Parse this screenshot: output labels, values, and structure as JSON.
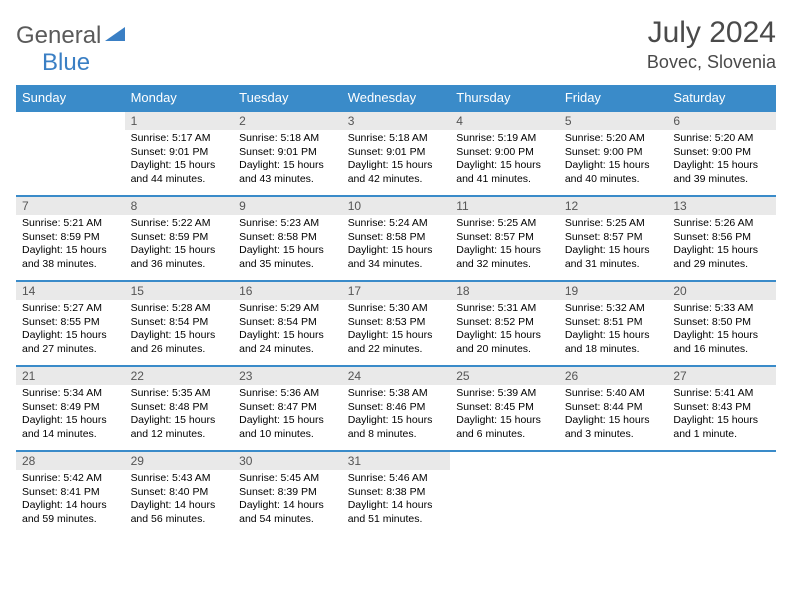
{
  "logo": {
    "part1": "General",
    "part2": "Blue"
  },
  "title": "July 2024",
  "location": "Bovec, Slovenia",
  "weekdays": [
    "Sunday",
    "Monday",
    "Tuesday",
    "Wednesday",
    "Thursday",
    "Friday",
    "Saturday"
  ],
  "colors": {
    "header_bg": "#3a8bc9",
    "daynum_bg": "#e9e9e9",
    "border": "#3a8bc9",
    "logo_gray": "#5a5a5a",
    "logo_blue": "#3a7fc4"
  },
  "weeks": [
    {
      "nums": [
        "",
        "1",
        "2",
        "3",
        "4",
        "5",
        "6"
      ],
      "cells": [
        null,
        {
          "sr": "Sunrise: 5:17 AM",
          "ss": "Sunset: 9:01 PM",
          "dl": "Daylight: 15 hours and 44 minutes."
        },
        {
          "sr": "Sunrise: 5:18 AM",
          "ss": "Sunset: 9:01 PM",
          "dl": "Daylight: 15 hours and 43 minutes."
        },
        {
          "sr": "Sunrise: 5:18 AM",
          "ss": "Sunset: 9:01 PM",
          "dl": "Daylight: 15 hours and 42 minutes."
        },
        {
          "sr": "Sunrise: 5:19 AM",
          "ss": "Sunset: 9:00 PM",
          "dl": "Daylight: 15 hours and 41 minutes."
        },
        {
          "sr": "Sunrise: 5:20 AM",
          "ss": "Sunset: 9:00 PM",
          "dl": "Daylight: 15 hours and 40 minutes."
        },
        {
          "sr": "Sunrise: 5:20 AM",
          "ss": "Sunset: 9:00 PM",
          "dl": "Daylight: 15 hours and 39 minutes."
        }
      ]
    },
    {
      "nums": [
        "7",
        "8",
        "9",
        "10",
        "11",
        "12",
        "13"
      ],
      "cells": [
        {
          "sr": "Sunrise: 5:21 AM",
          "ss": "Sunset: 8:59 PM",
          "dl": "Daylight: 15 hours and 38 minutes."
        },
        {
          "sr": "Sunrise: 5:22 AM",
          "ss": "Sunset: 8:59 PM",
          "dl": "Daylight: 15 hours and 36 minutes."
        },
        {
          "sr": "Sunrise: 5:23 AM",
          "ss": "Sunset: 8:58 PM",
          "dl": "Daylight: 15 hours and 35 minutes."
        },
        {
          "sr": "Sunrise: 5:24 AM",
          "ss": "Sunset: 8:58 PM",
          "dl": "Daylight: 15 hours and 34 minutes."
        },
        {
          "sr": "Sunrise: 5:25 AM",
          "ss": "Sunset: 8:57 PM",
          "dl": "Daylight: 15 hours and 32 minutes."
        },
        {
          "sr": "Sunrise: 5:25 AM",
          "ss": "Sunset: 8:57 PM",
          "dl": "Daylight: 15 hours and 31 minutes."
        },
        {
          "sr": "Sunrise: 5:26 AM",
          "ss": "Sunset: 8:56 PM",
          "dl": "Daylight: 15 hours and 29 minutes."
        }
      ]
    },
    {
      "nums": [
        "14",
        "15",
        "16",
        "17",
        "18",
        "19",
        "20"
      ],
      "cells": [
        {
          "sr": "Sunrise: 5:27 AM",
          "ss": "Sunset: 8:55 PM",
          "dl": "Daylight: 15 hours and 27 minutes."
        },
        {
          "sr": "Sunrise: 5:28 AM",
          "ss": "Sunset: 8:54 PM",
          "dl": "Daylight: 15 hours and 26 minutes."
        },
        {
          "sr": "Sunrise: 5:29 AM",
          "ss": "Sunset: 8:54 PM",
          "dl": "Daylight: 15 hours and 24 minutes."
        },
        {
          "sr": "Sunrise: 5:30 AM",
          "ss": "Sunset: 8:53 PM",
          "dl": "Daylight: 15 hours and 22 minutes."
        },
        {
          "sr": "Sunrise: 5:31 AM",
          "ss": "Sunset: 8:52 PM",
          "dl": "Daylight: 15 hours and 20 minutes."
        },
        {
          "sr": "Sunrise: 5:32 AM",
          "ss": "Sunset: 8:51 PM",
          "dl": "Daylight: 15 hours and 18 minutes."
        },
        {
          "sr": "Sunrise: 5:33 AM",
          "ss": "Sunset: 8:50 PM",
          "dl": "Daylight: 15 hours and 16 minutes."
        }
      ]
    },
    {
      "nums": [
        "21",
        "22",
        "23",
        "24",
        "25",
        "26",
        "27"
      ],
      "cells": [
        {
          "sr": "Sunrise: 5:34 AM",
          "ss": "Sunset: 8:49 PM",
          "dl": "Daylight: 15 hours and 14 minutes."
        },
        {
          "sr": "Sunrise: 5:35 AM",
          "ss": "Sunset: 8:48 PM",
          "dl": "Daylight: 15 hours and 12 minutes."
        },
        {
          "sr": "Sunrise: 5:36 AM",
          "ss": "Sunset: 8:47 PM",
          "dl": "Daylight: 15 hours and 10 minutes."
        },
        {
          "sr": "Sunrise: 5:38 AM",
          "ss": "Sunset: 8:46 PM",
          "dl": "Daylight: 15 hours and 8 minutes."
        },
        {
          "sr": "Sunrise: 5:39 AM",
          "ss": "Sunset: 8:45 PM",
          "dl": "Daylight: 15 hours and 6 minutes."
        },
        {
          "sr": "Sunrise: 5:40 AM",
          "ss": "Sunset: 8:44 PM",
          "dl": "Daylight: 15 hours and 3 minutes."
        },
        {
          "sr": "Sunrise: 5:41 AM",
          "ss": "Sunset: 8:43 PM",
          "dl": "Daylight: 15 hours and 1 minute."
        }
      ]
    },
    {
      "nums": [
        "28",
        "29",
        "30",
        "31",
        "",
        "",
        ""
      ],
      "cells": [
        {
          "sr": "Sunrise: 5:42 AM",
          "ss": "Sunset: 8:41 PM",
          "dl": "Daylight: 14 hours and 59 minutes."
        },
        {
          "sr": "Sunrise: 5:43 AM",
          "ss": "Sunset: 8:40 PM",
          "dl": "Daylight: 14 hours and 56 minutes."
        },
        {
          "sr": "Sunrise: 5:45 AM",
          "ss": "Sunset: 8:39 PM",
          "dl": "Daylight: 14 hours and 54 minutes."
        },
        {
          "sr": "Sunrise: 5:46 AM",
          "ss": "Sunset: 8:38 PM",
          "dl": "Daylight: 14 hours and 51 minutes."
        },
        null,
        null,
        null
      ]
    }
  ]
}
